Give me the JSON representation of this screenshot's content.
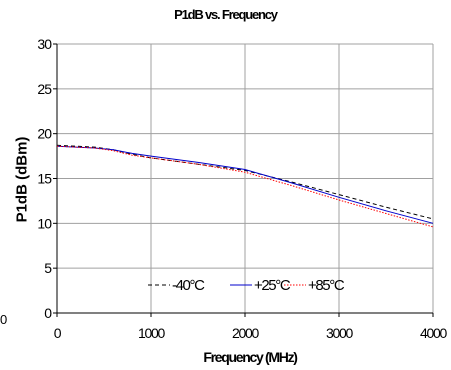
{
  "chart_data": {
    "type": "line",
    "title": "P1dB vs. Frequency",
    "xlabel": "Frequency (MHz)",
    "ylabel": "P1dB (dBm)",
    "xlim": [
      0,
      4000
    ],
    "ylim": [
      0,
      30
    ],
    "xticks": [
      "0",
      "1000",
      "2000",
      "3000",
      "4000"
    ],
    "yticks": [
      "0",
      "5",
      "10",
      "15",
      "20",
      "25",
      "30"
    ],
    "grid": true,
    "legend_position": "bottom-center",
    "stray_label": "0",
    "series": [
      {
        "name": "-40°C",
        "color": "#000000",
        "style": "dashed",
        "x": [
          0,
          200,
          400,
          600,
          800,
          1000,
          1500,
          2000,
          2500,
          3000,
          3500,
          4000
        ],
        "y": [
          18.7,
          18.6,
          18.5,
          18.2,
          17.7,
          17.3,
          16.6,
          15.9,
          14.6,
          13.2,
          11.8,
          10.5
        ]
      },
      {
        "name": "+25°C",
        "color": "#0000cc",
        "style": "solid",
        "x": [
          0,
          200,
          400,
          600,
          800,
          1000,
          1500,
          2000,
          2500,
          3000,
          3500,
          4000
        ],
        "y": [
          18.6,
          18.5,
          18.4,
          18.2,
          17.8,
          17.5,
          16.8,
          16.0,
          14.5,
          12.9,
          11.4,
          10.0
        ]
      },
      {
        "name": "+85°C",
        "color": "#ff0000",
        "style": "dotted",
        "x": [
          0,
          200,
          400,
          600,
          800,
          1000,
          1500,
          2000,
          2500,
          3000,
          3500,
          4000
        ],
        "y": [
          18.6,
          18.5,
          18.4,
          18.1,
          17.6,
          17.3,
          16.6,
          15.7,
          14.2,
          12.6,
          11.1,
          9.6
        ]
      }
    ]
  }
}
